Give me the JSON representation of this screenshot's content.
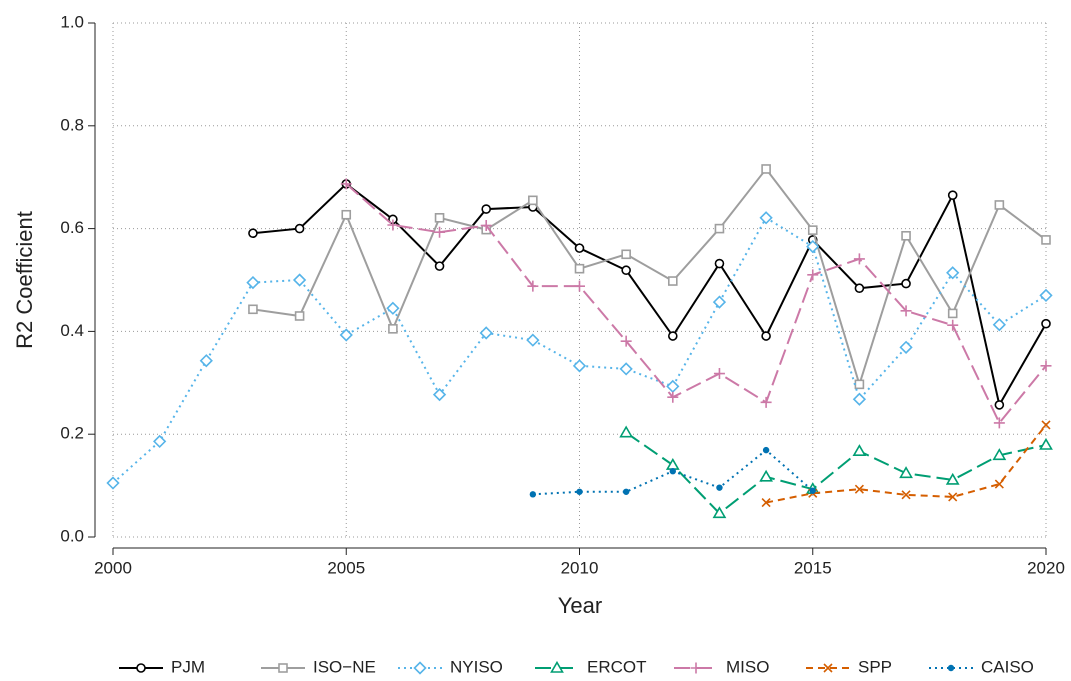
{
  "chart_data": {
    "type": "line",
    "x_label": "Year",
    "y_label": "R2 Coefficient",
    "x": [
      2000,
      2001,
      2002,
      2003,
      2004,
      2005,
      2006,
      2007,
      2008,
      2009,
      2010,
      2011,
      2012,
      2013,
      2014,
      2015,
      2016,
      2017,
      2018,
      2019,
      2020
    ],
    "xlim": [
      2000,
      2020
    ],
    "xticks": [
      2000,
      2005,
      2010,
      2015,
      2020
    ],
    "ylim": [
      0,
      1
    ],
    "yticks": [
      {
        "value": 0,
        "label": "0.0"
      },
      {
        "value": 0.2,
        "label": "0.2"
      },
      {
        "value": 0.4,
        "label": "0.4"
      },
      {
        "value": 0.6,
        "label": "0.6"
      },
      {
        "value": 0.8,
        "label": "0.8"
      },
      {
        "value": 1,
        "label": "1.0"
      }
    ],
    "grid": true,
    "legend": "bottom",
    "series": [
      {
        "name": "PJM",
        "color": "#000000",
        "marker": "circle",
        "dash": "solid",
        "values": [
          null,
          null,
          null,
          0.591,
          0.6,
          0.687,
          0.618,
          0.527,
          0.638,
          0.642,
          0.562,
          0.519,
          0.391,
          0.532,
          0.391,
          0.578,
          0.484,
          0.493,
          0.665,
          0.257,
          0.415
        ]
      },
      {
        "name": "ISO−NE",
        "color": "#9e9e9e",
        "marker": "square",
        "dash": "solid",
        "values": [
          null,
          null,
          null,
          0.443,
          0.43,
          0.627,
          0.405,
          0.621,
          0.598,
          0.655,
          0.522,
          0.55,
          0.498,
          0.6,
          0.716,
          0.597,
          0.297,
          0.586,
          0.435,
          0.646,
          0.578
        ]
      },
      {
        "name": "NYISO",
        "color": "#56b4e9",
        "marker": "diamond",
        "dash": "dotted",
        "values": [
          0.105,
          0.186,
          0.343,
          0.495,
          0.5,
          0.393,
          0.445,
          0.277,
          0.397,
          0.383,
          0.333,
          0.327,
          0.293,
          0.457,
          0.621,
          0.565,
          0.268,
          0.369,
          0.514,
          0.413,
          0.47
        ]
      },
      {
        "name": "ERCOT",
        "color": "#009e73",
        "marker": "triangle",
        "dash": "longdash",
        "values": [
          null,
          null,
          null,
          null,
          null,
          null,
          null,
          null,
          null,
          null,
          null,
          0.203,
          0.14,
          0.046,
          0.117,
          0.093,
          0.167,
          0.124,
          0.111,
          0.159,
          0.179
        ]
      },
      {
        "name": "MISO",
        "color": "#cc79a7",
        "marker": "plus",
        "dash": "longdash",
        "values": [
          null,
          null,
          null,
          null,
          null,
          0.687,
          0.607,
          0.593,
          0.606,
          0.488,
          0.488,
          0.381,
          0.272,
          0.318,
          0.262,
          0.51,
          0.541,
          0.44,
          0.412,
          0.222,
          0.333
        ]
      },
      {
        "name": "SPP",
        "color": "#d55e00",
        "marker": "cross",
        "dash": "dashed",
        "values": [
          null,
          null,
          null,
          null,
          null,
          null,
          null,
          null,
          null,
          null,
          null,
          null,
          null,
          null,
          0.067,
          0.085,
          0.093,
          0.082,
          0.078,
          0.103,
          0.218
        ]
      },
      {
        "name": "CAISO",
        "color": "#0072b2",
        "marker": "dot",
        "dash": "dotted",
        "values": [
          null,
          null,
          null,
          null,
          null,
          null,
          null,
          null,
          null,
          0.083,
          0.088,
          0.088,
          0.128,
          0.096,
          0.169,
          0.09,
          null,
          null,
          null,
          null,
          null
        ]
      }
    ]
  }
}
